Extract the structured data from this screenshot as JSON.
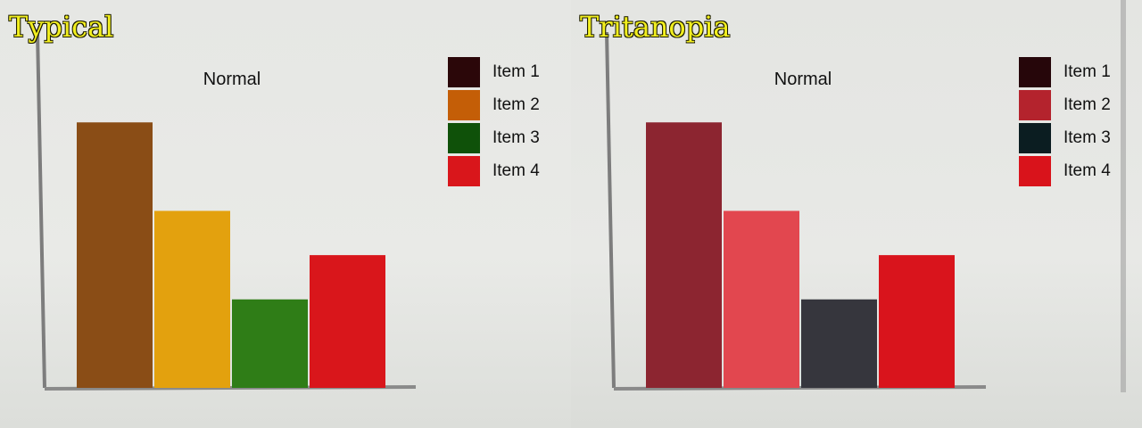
{
  "panels": {
    "left": {
      "label": "Typical"
    },
    "right": {
      "label": "Tritanopia"
    }
  },
  "chart_data": [
    {
      "type": "bar",
      "title": "Normal",
      "categories": [
        "Item 1",
        "Item 2",
        "Item 3",
        "Item 4"
      ],
      "values": [
        6,
        4,
        2,
        3
      ],
      "ylim": [
        0,
        8
      ],
      "legend": "top-right",
      "grid": false,
      "colors": [
        "#8a4d16",
        "#e3a10e",
        "#2f7d17",
        "#d9161b"
      ],
      "legend_colors": [
        "#2b0709",
        "#c45e07",
        "#0f5109",
        "#d9161b"
      ]
    },
    {
      "type": "bar",
      "title": "Normal",
      "categories": [
        "Item 1",
        "Item 2",
        "Item 3",
        "Item 4"
      ],
      "values": [
        6,
        4,
        2,
        3
      ],
      "ylim": [
        0,
        8
      ],
      "legend": "top-right",
      "grid": false,
      "colors": [
        "#8c2530",
        "#e2474f",
        "#36363d",
        "#d9141c"
      ],
      "legend_colors": [
        "#26060a",
        "#b4232d",
        "#0b1d21",
        "#d9131b"
      ]
    }
  ]
}
